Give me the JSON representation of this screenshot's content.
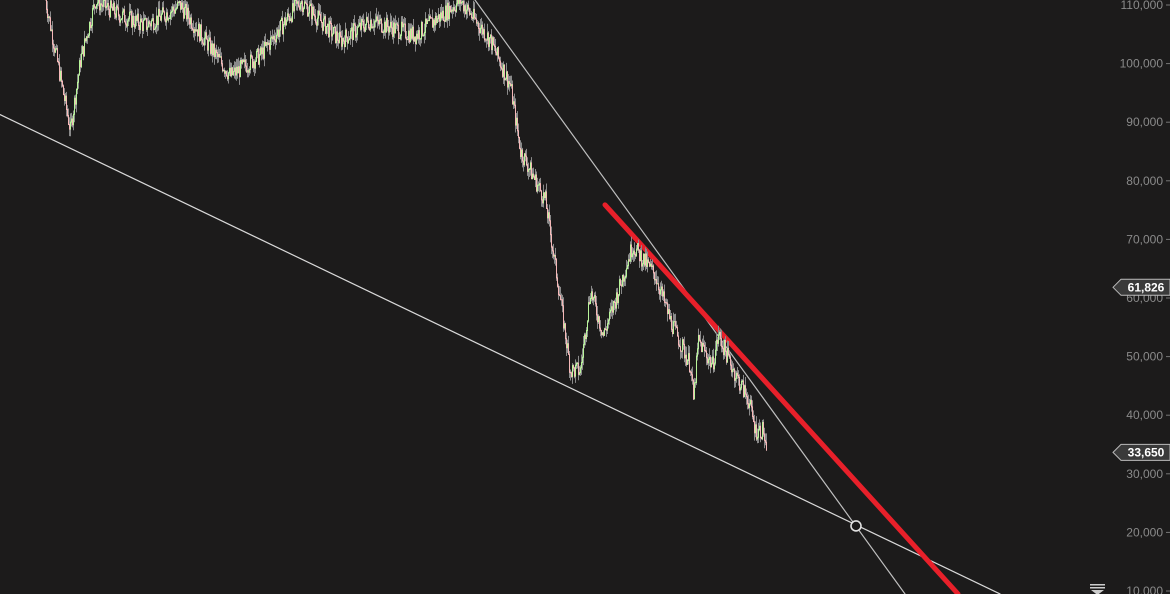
{
  "chart_data": {
    "type": "line",
    "style": "candlestick-like price series",
    "xlabel": "",
    "ylabel": "",
    "ylim": [
      9500,
      111000
    ],
    "xlim": [
      0,
      1110
    ],
    "y_ticks": [
      "110,000",
      "100,000",
      "90,000",
      "80,000",
      "70,000",
      "60,000",
      "50,000",
      "40,000",
      "30,000",
      "20,000",
      "10,000"
    ],
    "y_tick_values": [
      110000,
      100000,
      90000,
      80000,
      70000,
      60000,
      50000,
      40000,
      30000,
      20000,
      10000
    ],
    "price_series": {
      "x": [
        45,
        70,
        80,
        95,
        120,
        145,
        180,
        230,
        260,
        300,
        340,
        370,
        415,
        460,
        490,
        510,
        520,
        545,
        560,
        570,
        580,
        590,
        603,
        615,
        632,
        655,
        670,
        690,
        693,
        698,
        712,
        718,
        735,
        748,
        755,
        763,
        766
      ],
      "y": [
        111000,
        88700,
        100600,
        110800,
        108300,
        106600,
        110000,
        98000,
        101500,
        110800,
        104000,
        107400,
        104900,
        110800,
        104000,
        96300,
        85200,
        76700,
        59700,
        47700,
        47700,
        61400,
        53700,
        59700,
        69000,
        63900,
        56200,
        48600,
        42700,
        52800,
        48600,
        53700,
        47000,
        42700,
        37500,
        37500,
        32700
      ]
    },
    "trendlines": [
      {
        "role": "lower-support",
        "color": "#d9d9d9",
        "from": [
          0,
          91300
        ],
        "to": [
          1000,
          9500
        ]
      },
      {
        "role": "upper-resistance",
        "color": "#bfbfbf",
        "from": [
          475,
          110850
        ],
        "to": [
          905,
          9500
        ]
      },
      {
        "role": "drawn-resistance",
        "color": "#e8202a",
        "from": [
          605,
          75900
        ],
        "to": [
          958,
          9500
        ]
      }
    ],
    "intersection_marker": {
      "x": 856,
      "y": 21100
    },
    "price_tags": [
      {
        "label": "61,826",
        "value": 61826
      },
      {
        "label": "33,650",
        "value": 33650
      }
    ],
    "colors": {
      "background": "#1c1b1b",
      "up": "#b8f59a",
      "down": "#f5b8b8",
      "wick": "#8a8a8a",
      "tag_bg": "#3a3a3a"
    },
    "grid": false
  },
  "axis_menu_icon": "triangle-down-menu-icon"
}
